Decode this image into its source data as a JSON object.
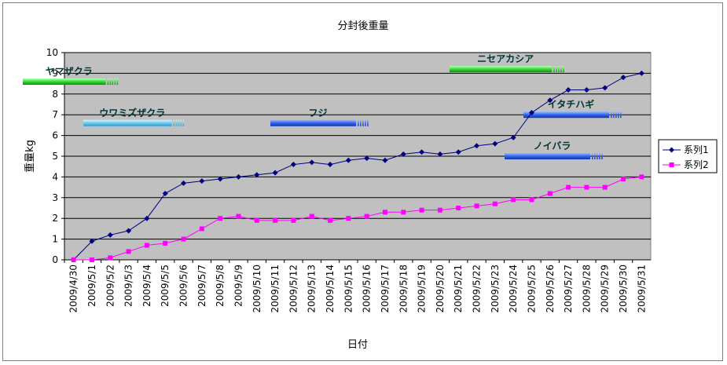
{
  "chart_data": {
    "type": "line",
    "title": "分封後重量",
    "xlabel": "日付",
    "ylabel": "重量kg",
    "ylim": [
      0,
      10
    ],
    "yticks": [
      0,
      1,
      2,
      3,
      4,
      5,
      6,
      7,
      8,
      9,
      10
    ],
    "grid": true,
    "legend_position": "right",
    "colors": {
      "plot_bg": "#c0c0c0",
      "grid": "#000000",
      "series1": "#000080",
      "series2": "#ff00ff"
    },
    "categories": [
      "2009/4/30",
      "2009/5/1",
      "2009/5/2",
      "2009/5/3",
      "2009/5/4",
      "2009/5/5",
      "2009/5/6",
      "2009/5/7",
      "2009/5/8",
      "2009/5/9",
      "2009/5/10",
      "2009/5/11",
      "2009/5/12",
      "2009/5/13",
      "2009/5/14",
      "2009/5/15",
      "2009/5/16",
      "2009/5/17",
      "2009/5/18",
      "2009/5/19",
      "2009/5/20",
      "2009/5/21",
      "2009/5/22",
      "2009/5/23",
      "2009/5/24",
      "2009/5/25",
      "2009/5/26",
      "2009/5/27",
      "2009/5/28",
      "2009/5/29",
      "2009/5/30",
      "2009/5/31"
    ],
    "series": [
      {
        "name": "系列1",
        "marker": "diamond",
        "values": [
          0,
          0.9,
          1.2,
          1.4,
          2.0,
          3.2,
          3.7,
          3.8,
          3.9,
          4.0,
          4.1,
          4.2,
          4.6,
          4.7,
          4.6,
          4.8,
          4.9,
          4.8,
          5.1,
          5.2,
          5.1,
          5.2,
          5.5,
          5.6,
          5.9,
          7.1,
          7.7,
          8.2,
          8.2,
          8.3,
          8.8,
          9.0
        ]
      },
      {
        "name": "系列2",
        "marker": "square",
        "values": [
          0,
          0,
          0.1,
          0.4,
          0.7,
          0.8,
          1.0,
          1.5,
          2.0,
          2.1,
          1.9,
          1.9,
          1.9,
          2.1,
          1.9,
          2.0,
          2.1,
          2.3,
          2.3,
          2.4,
          2.4,
          2.5,
          2.6,
          2.7,
          2.9,
          2.9,
          3.2,
          3.5,
          3.5,
          3.5,
          3.9,
          4.0
        ]
      }
    ],
    "annotations": [
      {
        "text": "ヤマザクラ",
        "color": "green",
        "value": 8.6
      },
      {
        "text": "ウワミズザクラ",
        "color": "lightblue",
        "value": 6.6
      },
      {
        "text": "フジ",
        "color": "blue",
        "value": 6.6
      },
      {
        "text": "ニセアカシア",
        "color": "green",
        "value": 9.2
      },
      {
        "text": "イタチハギ",
        "color": "blue",
        "value": 7.0
      },
      {
        "text": "ノイバラ",
        "color": "blue",
        "value": 5.0
      }
    ]
  }
}
